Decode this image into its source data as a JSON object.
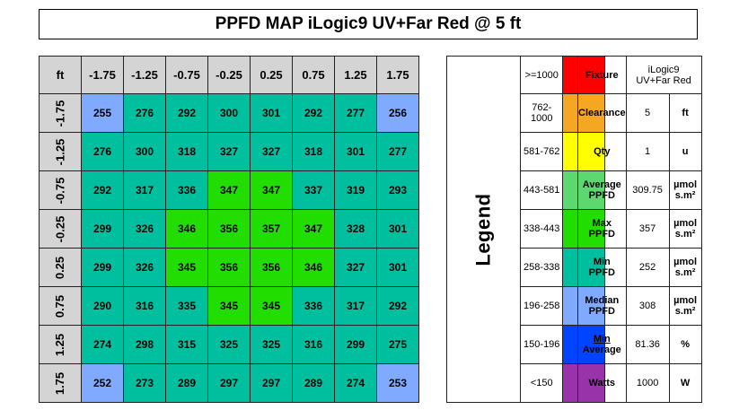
{
  "title": "PPFD MAP iLogic9 UV+Far Red @ 5 ft",
  "chart_data": {
    "type": "heatmap",
    "corner_label": "ft",
    "x": [
      "-1.75",
      "-1.25",
      "-0.75",
      "-0.25",
      "0.25",
      "0.75",
      "1.25",
      "1.75"
    ],
    "y": [
      "-1.75",
      "-1.25",
      "-0.75",
      "-0.25",
      "0.25",
      "0.75",
      "1.25",
      "1.75"
    ],
    "values": [
      [
        255,
        276,
        292,
        300,
        301,
        292,
        277,
        256
      ],
      [
        276,
        300,
        318,
        327,
        327,
        318,
        301,
        277
      ],
      [
        292,
        317,
        336,
        347,
        347,
        337,
        319,
        293
      ],
      [
        299,
        326,
        346,
        356,
        357,
        347,
        328,
        301
      ],
      [
        299,
        326,
        345,
        356,
        356,
        346,
        327,
        301
      ],
      [
        290,
        316,
        335,
        345,
        345,
        336,
        317,
        292
      ],
      [
        274,
        298,
        315,
        325,
        325,
        316,
        299,
        275
      ],
      [
        252,
        273,
        289,
        297,
        297,
        289,
        274,
        253
      ]
    ]
  },
  "legend": {
    "title": "Legend",
    "bins": [
      {
        "label": ">=1000",
        "min": 1000,
        "color": "#ff0000"
      },
      {
        "label": "762-1000",
        "min": 762,
        "color": "#f5a623"
      },
      {
        "label": "581-762",
        "min": 581,
        "color": "#ffff00"
      },
      {
        "label": "443-581",
        "min": 443,
        "color": "#5dd870"
      },
      {
        "label": "338-443",
        "min": 338,
        "color": "#22dd00"
      },
      {
        "label": "258-338",
        "min": 258,
        "color": "#00bf9f"
      },
      {
        "label": "196-258",
        "min": 196,
        "color": "#80aaff"
      },
      {
        "label": "150-196",
        "min": 150,
        "color": "#0044ff"
      },
      {
        "label": "<150",
        "min": 0,
        "color": "#9933aa"
      }
    ]
  },
  "colors": {
    "header_bg": "#d4d4d4",
    "border": "#222222"
  },
  "info": {
    "fixture_label": "Fixture",
    "fixture_line1": "iLogic9",
    "fixture_line2": "UV+Far Red",
    "clearance_label": "Clearance",
    "clearance_value": "5",
    "clearance_unit": "ft",
    "qty_label": "Qty",
    "qty_value": "1",
    "qty_unit": "u",
    "avg_label1": "Average",
    "avg_label2": "PPFD",
    "avg_value": "309.75",
    "max_label1": "Max",
    "max_label2": "PPFD",
    "max_value": "357",
    "min_label1": "Min",
    "min_label2": "PPFD",
    "min_value": "252",
    "median_label1": "Median",
    "median_label2": "PPFD",
    "median_value": "308",
    "unit_line1": "µmol",
    "unit_line2": "s.m²",
    "ratio_label1": "Min",
    "ratio_label2": "Average",
    "ratio_value": "81.36",
    "ratio_unit": "%",
    "watts_label": "Watts",
    "watts_value": "1000",
    "watts_unit": "W"
  }
}
